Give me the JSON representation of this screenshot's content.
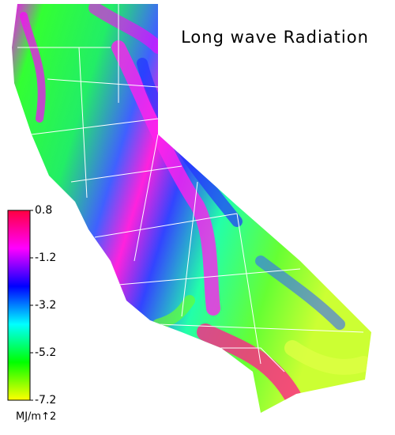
{
  "title": "Long wave Radiation",
  "colorbar": {
    "label": "MJ/m↑2",
    "lim": [
      -7.2,
      0.8
    ],
    "ticks": [
      0.8,
      -1.2,
      -3.2,
      -5.2,
      -7.2
    ],
    "colors": [
      "#ffff00",
      "#00ff00",
      "#00ffff",
      "#0000ff",
      "#ff00ff",
      "#ff0040"
    ]
  }
}
